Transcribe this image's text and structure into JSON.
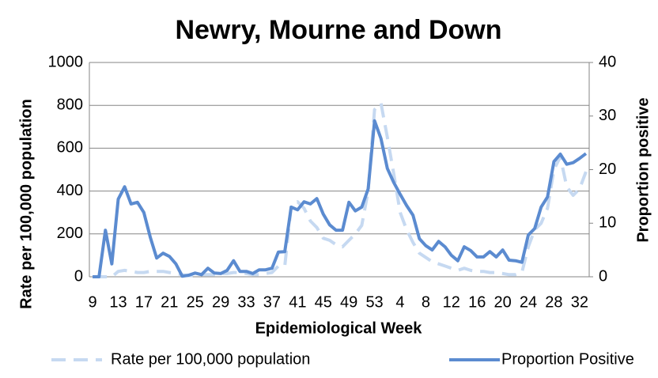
{
  "chart_data": {
    "type": "line",
    "title": "Newry, Mourne and Down",
    "x_label": "Epidemiological Week",
    "y_label": "Rate per 100,000 population",
    "y2_label": "Proportion positive",
    "categories": [
      "9",
      null,
      null,
      null,
      "13",
      null,
      null,
      null,
      "17",
      null,
      null,
      null,
      "21",
      null,
      null,
      null,
      "25",
      null,
      null,
      null,
      "29",
      null,
      null,
      null,
      "33",
      null,
      null,
      null,
      "37",
      null,
      null,
      null,
      "41",
      null,
      null,
      null,
      "45",
      null,
      null,
      null,
      "49",
      null,
      null,
      null,
      "53",
      null,
      null,
      null,
      "4",
      null,
      null,
      null,
      "8",
      null,
      null,
      null,
      "12",
      null,
      null,
      null,
      "16",
      null,
      null,
      null,
      "20",
      null,
      null,
      null,
      "24",
      null,
      null,
      null,
      "28",
      null,
      null,
      null,
      "32",
      null
    ],
    "series": [
      {
        "name": "Rate per 100,000 population",
        "color": "#c6d9f1",
        "dash": true,
        "values": [
          0,
          0,
          0,
          0,
          25,
          30,
          25,
          20,
          20,
          25,
          25,
          25,
          20,
          15,
          10,
          5,
          5,
          10,
          10,
          10,
          15,
          15,
          20,
          20,
          15,
          10,
          10,
          15,
          20,
          50,
          50,
          330,
          350,
          320,
          260,
          230,
          180,
          170,
          150,
          140,
          170,
          200,
          240,
          400,
          780,
          810,
          650,
          480,
          300,
          220,
          160,
          110,
          90,
          70,
          60,
          50,
          40,
          30,
          40,
          30,
          25,
          25,
          20,
          20,
          15,
          10,
          10,
          20,
          140,
          220,
          250,
          320,
          500,
          560,
          420,
          380,
          410,
          490
        ]
      },
      {
        "name": "Proportion Positive",
        "color": "#5b8bd0",
        "axis": "y2",
        "values": [
          0,
          0,
          8.7,
          2.4,
          14.5,
          16.8,
          13.6,
          13.9,
          12,
          7.4,
          3.5,
          4.4,
          3.8,
          2.4,
          0.1,
          0.3,
          0.7,
          0.4,
          1.6,
          0.7,
          0.6,
          1.2,
          3,
          1,
          1,
          0.6,
          1.3,
          1.3,
          1.6,
          4.6,
          4.7,
          13,
          12.5,
          14,
          13.6,
          14.6,
          11.7,
          9.7,
          8.7,
          8.7,
          13.9,
          12.3,
          13,
          16.4,
          29.1,
          25.8,
          20.2,
          17.6,
          15.4,
          13.3,
          11.5,
          7.1,
          5.8,
          5,
          6.6,
          5.6,
          4,
          3,
          5.6,
          4.9,
          3.7,
          3.7,
          4.7,
          3.7,
          5,
          3.1,
          3,
          2.7,
          7.8,
          9,
          13,
          14.9,
          21.5,
          22.9,
          21,
          21.3,
          22.1,
          23
        ]
      }
    ],
    "ylim": [
      0,
      1000
    ],
    "yticks": [
      0,
      200,
      400,
      600,
      800,
      1000
    ],
    "y2lim": [
      0,
      40
    ],
    "y2ticks": [
      0,
      10,
      20,
      30,
      40
    ],
    "grid": true
  }
}
